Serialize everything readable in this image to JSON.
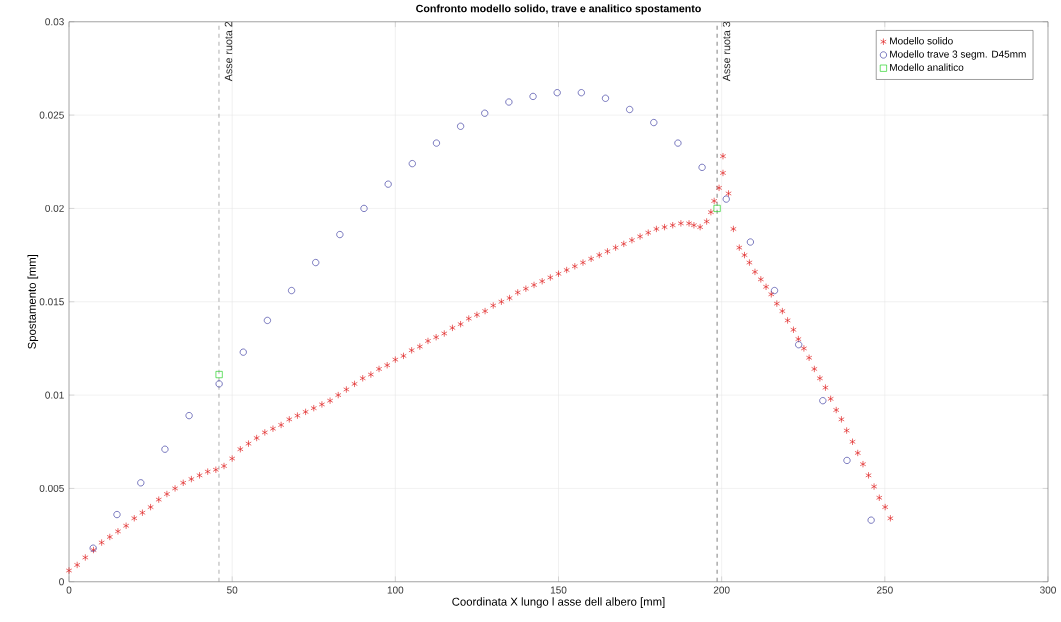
{
  "chart_data": {
    "type": "scatter",
    "title": "Confronto modello solido, trave e analitico spostamento",
    "xlabel": "Coordinata X lungo l asse dell albero [mm]",
    "ylabel": "Spostamento [mm]",
    "xlim": [
      0,
      300
    ],
    "ylim": [
      0,
      0.03
    ],
    "xticks": [
      0,
      50,
      100,
      150,
      200,
      250,
      300
    ],
    "yticks": [
      0,
      0.005,
      0.01,
      0.015,
      0.02,
      0.025,
      0.03
    ],
    "grid": true,
    "legend": "top right",
    "ref_lines": [
      {
        "axis": "x",
        "value": 46,
        "label": "Asse ruota 2",
        "color": "#404040",
        "line_style": "dashed"
      },
      {
        "axis": "x",
        "value": 198.6,
        "label": "Asse ruota 3",
        "color": "#404040",
        "line_style": "dashed"
      }
    ],
    "series": [
      {
        "name": "Modello solido",
        "color": "#e02020",
        "marker": "cross",
        "x": [
          0,
          2.5,
          5,
          7.5,
          10,
          12.5,
          15,
          17.5,
          20,
          22.5,
          25,
          27.5,
          30,
          32.5,
          35,
          37.5,
          40,
          42.5,
          45,
          47.5,
          50,
          52.5,
          55,
          57.5,
          60,
          62.5,
          65,
          67.5,
          70,
          72.5,
          75,
          77.5,
          80,
          82.5,
          85,
          87.5,
          90,
          92.5,
          95,
          97.5,
          100,
          102.5,
          105,
          107.5,
          110,
          112.5,
          115,
          117.5,
          120,
          122.5,
          125,
          127.5,
          130,
          132.5,
          135,
          137.5,
          140,
          142.5,
          145,
          147.5,
          150,
          152.5,
          155,
          157.5,
          160,
          162.5,
          165,
          167.5,
          170,
          172.5,
          175,
          177.5,
          180,
          182.5,
          185,
          187.5,
          190,
          191.5,
          193.4,
          195.4,
          196.7,
          197.7,
          199.2,
          200.4,
          200.4,
          202.1,
          203.6,
          205.4,
          207,
          208.5,
          210.2,
          212.0,
          213.6,
          215.2,
          216.9,
          218.6,
          220.2,
          222.0,
          223.5,
          225.2,
          226.8,
          228.4,
          230.1,
          231.8,
          233.4,
          235.1,
          236.7,
          238.3,
          240.1,
          241.7,
          243.3,
          245.0,
          246.7,
          248.3,
          250.1,
          251.7
        ],
        "values": [
          0.0006,
          0.0009,
          0.0013,
          0.0017,
          0.0021,
          0.0024,
          0.0027,
          0.003,
          0.0034,
          0.0037,
          0.004,
          0.0044,
          0.0047,
          0.005,
          0.0053,
          0.0055,
          0.0057,
          0.0059,
          0.006,
          0.0062,
          0.0066,
          0.0071,
          0.0074,
          0.0077,
          0.008,
          0.0082,
          0.0084,
          0.0087,
          0.0089,
          0.0091,
          0.0093,
          0.0095,
          0.0097,
          0.01,
          0.0103,
          0.0106,
          0.0109,
          0.0111,
          0.0114,
          0.0116,
          0.0119,
          0.0121,
          0.0124,
          0.0126,
          0.0129,
          0.0131,
          0.0133,
          0.0136,
          0.0138,
          0.0141,
          0.0143,
          0.0145,
          0.0148,
          0.015,
          0.0152,
          0.0155,
          0.0157,
          0.0159,
          0.0161,
          0.0163,
          0.0165,
          0.0167,
          0.0169,
          0.0171,
          0.0173,
          0.0175,
          0.0177,
          0.0179,
          0.0181,
          0.0183,
          0.0185,
          0.0187,
          0.0189,
          0.019,
          0.0191,
          0.0192,
          0.0192,
          0.0191,
          0.019,
          0.0193,
          0.0198,
          0.0204,
          0.0211,
          0.0219,
          0.0228,
          0.0208,
          0.0189,
          0.0179,
          0.0175,
          0.0171,
          0.0166,
          0.0162,
          0.0158,
          0.0154,
          0.0149,
          0.0145,
          0.014,
          0.0135,
          0.013,
          0.0125,
          0.012,
          0.0114,
          0.0109,
          0.0104,
          0.0098,
          0.0092,
          0.0087,
          0.0081,
          0.0075,
          0.0069,
          0.0063,
          0.0057,
          0.0051,
          0.0045,
          0.004,
          0.0034
        ]
      },
      {
        "name": "Modello trave 3 segm. D45mm",
        "color": "#3a3aa0",
        "marker": "circle",
        "x": [
          7.4,
          14.7,
          22,
          29.4,
          36.8,
          46,
          53.4,
          60.8,
          68.2,
          75.6,
          83,
          90.4,
          97.8,
          105.2,
          112.6,
          120,
          127.4,
          134.8,
          142.2,
          149.6,
          157,
          164.4,
          171.8,
          179.2,
          186.6,
          194,
          201.4,
          208.8,
          216.2,
          223.6,
          231,
          238.4,
          245.8
        ],
        "values": [
          0.0018,
          0.0036,
          0.0053,
          0.0071,
          0.0089,
          0.0106,
          0.0123,
          0.014,
          0.0156,
          0.0171,
          0.0186,
          0.02,
          0.0213,
          0.0224,
          0.0235,
          0.0244,
          0.0251,
          0.0257,
          0.026,
          0.0262,
          0.0262,
          0.0259,
          0.0253,
          0.0246,
          0.0235,
          0.0222,
          0.0205,
          0.0182,
          0.0156,
          0.0127,
          0.0097,
          0.0065,
          0.0033
        ]
      },
      {
        "name": "Modello analitico",
        "color": "#20d020",
        "marker": "square",
        "x": [
          46,
          198.6
        ],
        "values": [
          0.0111,
          0.02
        ]
      }
    ]
  }
}
